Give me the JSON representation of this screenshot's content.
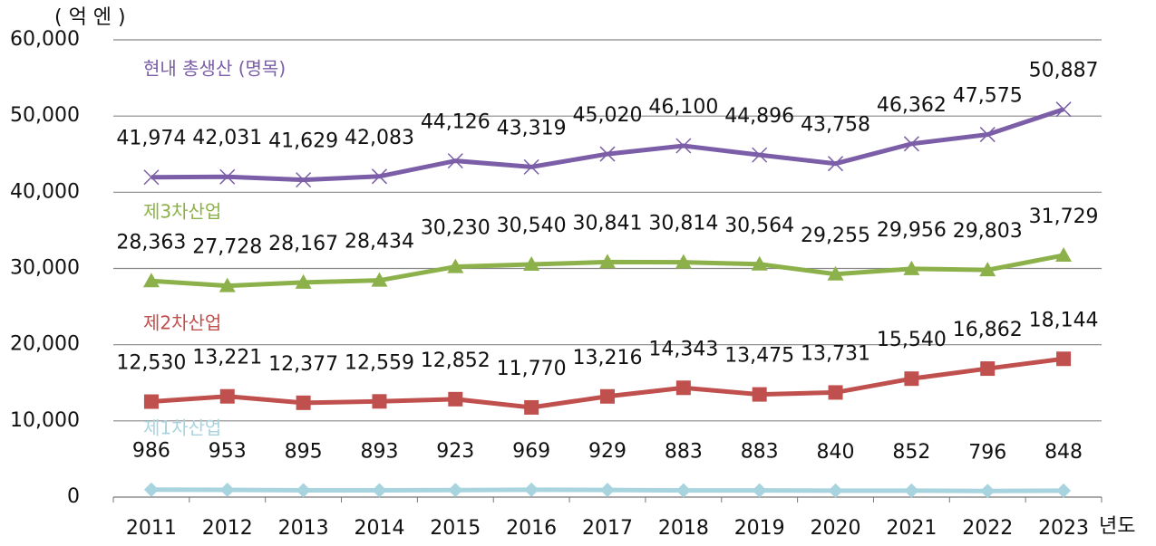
{
  "chart_data": {
    "type": "line",
    "y_axis_label": "( 억 엔 )",
    "x_axis_label": "년도",
    "categories": [
      "2011",
      "2012",
      "2013",
      "2014",
      "2015",
      "2016",
      "2017",
      "2018",
      "2019",
      "2020",
      "2021",
      "2022",
      "2023"
    ],
    "series": [
      {
        "name": "현내 총생산 (명목)",
        "color": "#7b5ea7",
        "marker": "x",
        "values": [
          41974,
          42031,
          41629,
          42083,
          44126,
          43319,
          45020,
          46100,
          44896,
          43758,
          46362,
          47575,
          50887
        ],
        "value_labels": [
          "41,974",
          "42,031",
          "41,629",
          "42,083",
          "44,126",
          "43,319",
          "45,020",
          "46,100",
          "44,896",
          "43,758",
          "46,362",
          "47,575",
          "50,887"
        ]
      },
      {
        "name": "제3차산업",
        "color": "#8db14a",
        "marker": "triangle",
        "values": [
          28363,
          27728,
          28167,
          28434,
          30230,
          30540,
          30841,
          30814,
          30564,
          29255,
          29956,
          29803,
          31729
        ],
        "value_labels": [
          "28,363",
          "27,728",
          "28,167",
          "28,434",
          "30,230",
          "30,540",
          "30,841",
          "30,814",
          "30,564",
          "29,255",
          "29,956",
          "29,803",
          "31,729"
        ]
      },
      {
        "name": "제2차산업",
        "color": "#c0504d",
        "marker": "square",
        "values": [
          12530,
          13221,
          12377,
          12559,
          12852,
          11770,
          13216,
          14343,
          13475,
          13731,
          15540,
          16862,
          18144
        ],
        "value_labels": [
          "12,530",
          "13,221",
          "12,377",
          "12,559",
          "12,852",
          "11,770",
          "13,216",
          "14,343",
          "13,475",
          "13,731",
          "15,540",
          "16,862",
          "18,144"
        ]
      },
      {
        "name": "제1차산업",
        "color": "#a8d4e0",
        "marker": "diamond",
        "values": [
          986,
          953,
          895,
          893,
          923,
          969,
          929,
          883,
          883,
          840,
          852,
          796,
          848
        ]
      }
    ],
    "ylim": [
      0,
      60000
    ],
    "yticks": [
      0,
      {
        "value": 10000,
        "label": "10,000"
      },
      {
        "value": 20000,
        "label": "20,000"
      },
      {
        "value": 30000,
        "label": "30,000"
      },
      {
        "value": 40000,
        "label": "40,000"
      },
      {
        "value": 50000,
        "label": "50,000"
      },
      {
        "value": 60000,
        "label": "60,000"
      }
    ],
    "grid": true
  }
}
